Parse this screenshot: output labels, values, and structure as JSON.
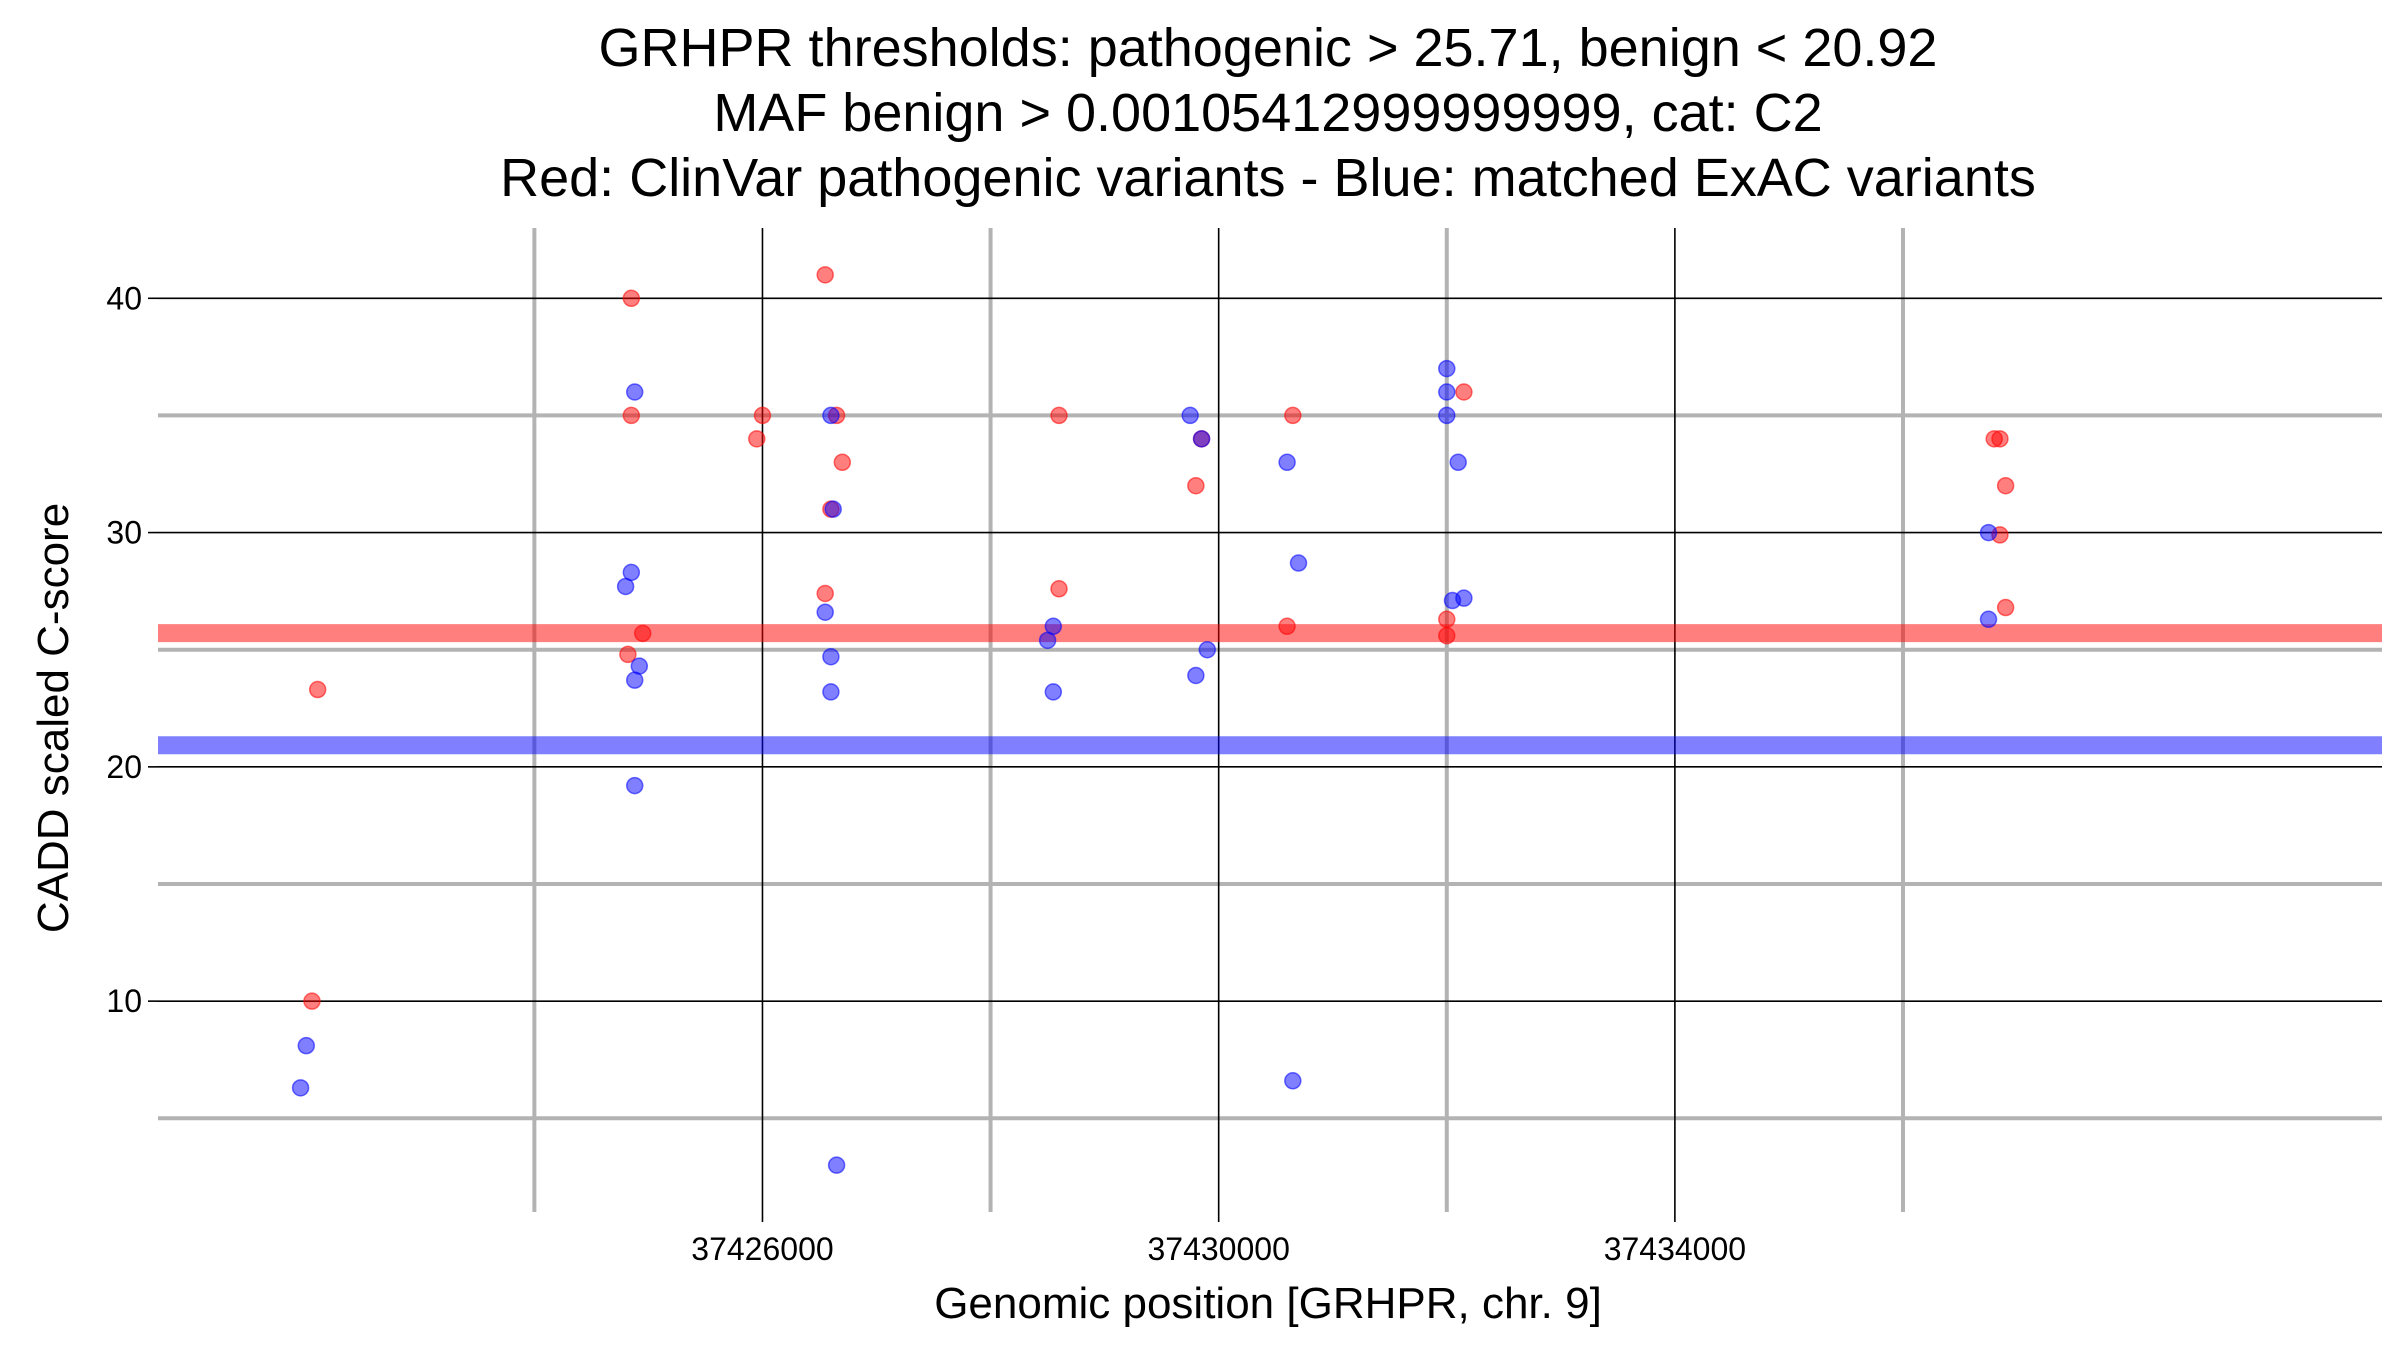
{
  "chart_data": {
    "type": "scatter",
    "title_lines": [
      "GRHPR thresholds: pathogenic > 25.71, benign < 20.92",
      "MAF benign > 0.00105412999999999, cat: C2",
      "Red: ClinVar pathogenic variants - Blue: matched ExAC variants"
    ],
    "xlabel": "Genomic position [GRHPR, chr. 9]",
    "ylabel": "CADD scaled C-score",
    "xlim": [
      37420700,
      37440200
    ],
    "ylim": [
      1,
      43
    ],
    "x_major_ticks": [
      37426000,
      37430000,
      37434000
    ],
    "x_tick_labels": [
      "37426000",
      "37430000",
      "37434000"
    ],
    "x_minor_ticks": [
      37424000,
      37428000,
      37432000,
      37436000
    ],
    "y_major_ticks": [
      10,
      20,
      30,
      40
    ],
    "y_tick_labels": [
      "10",
      "20",
      "30",
      "40"
    ],
    "y_minor_ticks": [
      5,
      15,
      25,
      35
    ],
    "grid": true,
    "colors": {
      "pathogenic": "#ff0000",
      "benign": "#0000ff",
      "grid_major": "#000000",
      "grid_minor": "#b3b3b3"
    },
    "thresholds": [
      {
        "name": "pathogenic threshold",
        "value": 25.71,
        "color": "#ff0000"
      },
      {
        "name": "benign threshold",
        "value": 20.92,
        "color": "#0000ff"
      }
    ],
    "series": [
      {
        "name": "ClinVar pathogenic variants",
        "color": "#ff0000",
        "points": [
          [
            37422050,
            10.0
          ],
          [
            37422100,
            23.3
          ],
          [
            37424850,
            40.0
          ],
          [
            37424850,
            35.0
          ],
          [
            37424820,
            24.8
          ],
          [
            37424950,
            25.7
          ],
          [
            37425950,
            34.0
          ],
          [
            37426000,
            35.0
          ],
          [
            37426550,
            41.0
          ],
          [
            37426550,
            27.4
          ],
          [
            37426600,
            31.0
          ],
          [
            37426650,
            35.0
          ],
          [
            37426700,
            33.0
          ],
          [
            37428600,
            35.0
          ],
          [
            37428600,
            27.6
          ],
          [
            37429800,
            32.0
          ],
          [
            37429850,
            34.0
          ],
          [
            37430600,
            26.0
          ],
          [
            37430650,
            35.0
          ],
          [
            37432000,
            26.3
          ],
          [
            37432000,
            25.6
          ],
          [
            37432150,
            36.0
          ],
          [
            37436800,
            34.0
          ],
          [
            37436850,
            34.0
          ],
          [
            37436850,
            29.9
          ],
          [
            37436900,
            32.0
          ],
          [
            37436900,
            26.8
          ]
        ]
      },
      {
        "name": "matched ExAC variants",
        "color": "#0000ff",
        "points": [
          [
            37422000,
            8.1
          ],
          [
            37421950,
            6.3
          ],
          [
            37424800,
            27.7
          ],
          [
            37424850,
            28.3
          ],
          [
            37424880,
            36.0
          ],
          [
            37424880,
            23.7
          ],
          [
            37424920,
            24.3
          ],
          [
            37424880,
            19.2
          ],
          [
            37426550,
            26.6
          ],
          [
            37426600,
            35.0
          ],
          [
            37426600,
            24.7
          ],
          [
            37426600,
            23.2
          ],
          [
            37426620,
            31.0
          ],
          [
            37426650,
            3.0
          ],
          [
            37428500,
            25.4
          ],
          [
            37428550,
            26.0
          ],
          [
            37428550,
            23.2
          ],
          [
            37429750,
            35.0
          ],
          [
            37429800,
            23.9
          ],
          [
            37429850,
            34.0
          ],
          [
            37429900,
            25.0
          ],
          [
            37430600,
            33.0
          ],
          [
            37430650,
            6.6
          ],
          [
            37430700,
            28.7
          ],
          [
            37432000,
            37.0
          ],
          [
            37432000,
            36.0
          ],
          [
            37432000,
            35.0
          ],
          [
            37432050,
            27.1
          ],
          [
            37432100,
            33.0
          ],
          [
            37432150,
            27.2
          ],
          [
            37436750,
            30.0
          ],
          [
            37436750,
            26.3
          ]
        ]
      }
    ]
  }
}
